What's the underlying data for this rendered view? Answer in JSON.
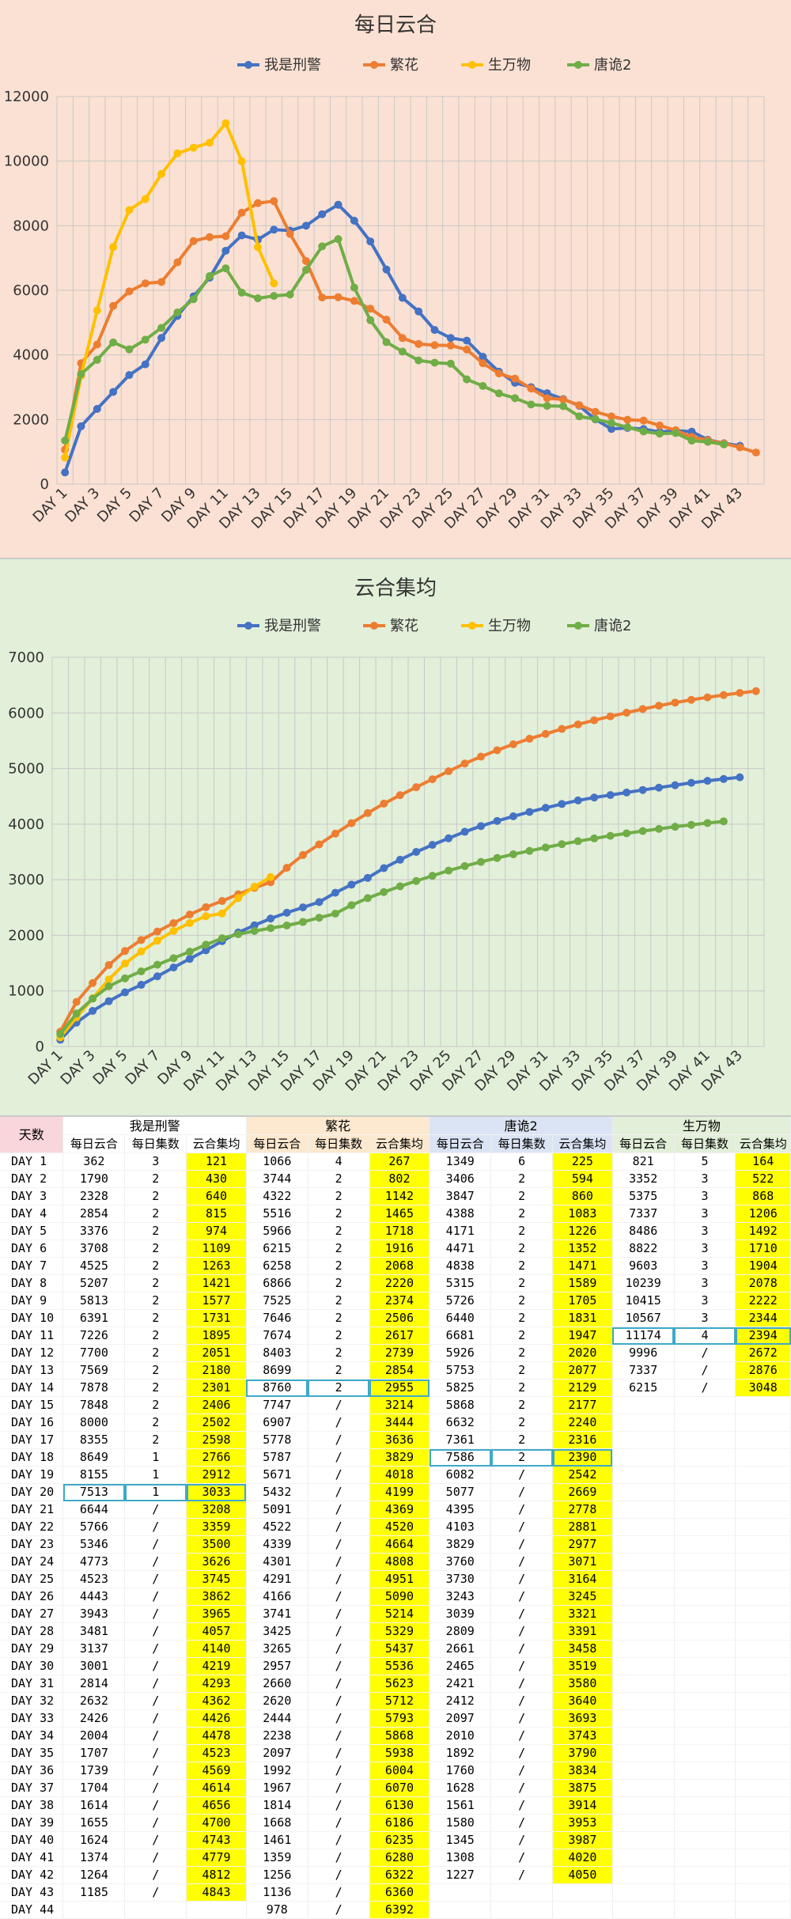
{
  "colors": {
    "series": [
      "#4472c4",
      "#ed7d31",
      "#ffc000",
      "#70ad47"
    ],
    "highlight": "#ffff00",
    "box": "#3fa9c9"
  },
  "chart_data": [
    {
      "type": "line",
      "title": "每日云合",
      "ylim": [
        0,
        12000
      ],
      "yticks": [
        0,
        2000,
        4000,
        6000,
        8000,
        10000,
        12000
      ],
      "xtick_labels": [
        "DAY 1",
        "DAY 3",
        "DAY 5",
        "DAY 7",
        "DAY 9",
        "DAY 11",
        "DAY 13",
        "DAY 15",
        "DAY 17",
        "DAY 19",
        "DAY 21",
        "DAY 23",
        "DAY 25",
        "DAY 27",
        "DAY 29",
        "DAY 31",
        "DAY 33",
        "DAY 35",
        "DAY 37",
        "DAY 39",
        "DAY 41",
        "DAY 43"
      ],
      "x_count": 44,
      "legend": "top",
      "grid": true,
      "series": [
        {
          "name": "我是刑警",
          "values": [
            362,
            1790,
            2328,
            2854,
            3376,
            3708,
            4525,
            5207,
            5813,
            6391,
            7226,
            7700,
            7569,
            7878,
            7848,
            8000,
            8355,
            8649,
            8155,
            7513,
            6644,
            5766,
            5346,
            4773,
            4523,
            4443,
            3943,
            3481,
            3137,
            3001,
            2814,
            2632,
            2426,
            2004,
            1707,
            1739,
            1704,
            1614,
            1655,
            1624,
            1374,
            1264,
            1185
          ]
        },
        {
          "name": "繁花",
          "values": [
            1066,
            3744,
            4322,
            5516,
            5966,
            6215,
            6258,
            6866,
            7525,
            7646,
            7674,
            8403,
            8699,
            8760,
            7747,
            6907,
            5778,
            5787,
            5671,
            5432,
            5091,
            4522,
            4339,
            4301,
            4291,
            4166,
            3741,
            3425,
            3265,
            2957,
            2660,
            2620,
            2444,
            2238,
            2097,
            1992,
            1967,
            1814,
            1668,
            1461,
            1359,
            1256,
            1136,
            978
          ]
        },
        {
          "name": "生万物",
          "values": [
            821,
            3352,
            5375,
            7337,
            8486,
            8822,
            9603,
            10239,
            10415,
            10567,
            11174,
            9996,
            7337,
            6215
          ]
        },
        {
          "name": "唐诡2",
          "values": [
            1349,
            3406,
            3847,
            4388,
            4171,
            4471,
            4838,
            5315,
            5726,
            6440,
            6681,
            5926,
            5753,
            5825,
            5868,
            6632,
            7361,
            7586,
            6082,
            5077,
            4395,
            4103,
            3829,
            3760,
            3730,
            3243,
            3039,
            2809,
            2661,
            2465,
            2421,
            2412,
            2097,
            2010,
            1892,
            1760,
            1628,
            1561,
            1580,
            1345,
            1308,
            1227
          ]
        }
      ]
    },
    {
      "type": "line",
      "title": "云合集均",
      "ylim": [
        0,
        7000
      ],
      "yticks": [
        0,
        1000,
        2000,
        3000,
        4000,
        5000,
        6000,
        7000
      ],
      "xtick_labels": [
        "DAY 1",
        "DAY 3",
        "DAY 5",
        "DAY 7",
        "DAY 9",
        "DAY 11",
        "DAY 13",
        "DAY 15",
        "DAY 17",
        "DAY 19",
        "DAY 21",
        "DAY 23",
        "DAY 25",
        "DAY 27",
        "DAY 29",
        "DAY 31",
        "DAY 33",
        "DAY 35",
        "DAY 37",
        "DAY 39",
        "DAY 41",
        "DAY 43"
      ],
      "x_count": 44,
      "legend": "top",
      "grid": true,
      "series": [
        {
          "name": "我是刑警",
          "values": [
            121,
            430,
            640,
            815,
            974,
            1109,
            1263,
            1421,
            1577,
            1731,
            1895,
            2051,
            2180,
            2301,
            2406,
            2502,
            2598,
            2766,
            2912,
            3033,
            3208,
            3359,
            3500,
            3626,
            3745,
            3862,
            3965,
            4057,
            4140,
            4219,
            4293,
            4362,
            4426,
            4478,
            4523,
            4569,
            4614,
            4656,
            4700,
            4743,
            4779,
            4812,
            4843
          ]
        },
        {
          "name": "繁花",
          "values": [
            267,
            802,
            1142,
            1465,
            1718,
            1916,
            2068,
            2220,
            2374,
            2506,
            2617,
            2739,
            2854,
            2955,
            3214,
            3444,
            3636,
            3829,
            4018,
            4199,
            4369,
            4520,
            4664,
            4808,
            4951,
            5090,
            5214,
            5329,
            5437,
            5536,
            5623,
            5712,
            5793,
            5868,
            5938,
            6004,
            6070,
            6130,
            6186,
            6235,
            6280,
            6322,
            6360,
            6392
          ]
        },
        {
          "name": "生万物",
          "values": [
            164,
            522,
            868,
            1206,
            1492,
            1710,
            1904,
            2078,
            2222,
            2344,
            2394,
            2672,
            2876,
            3048
          ]
        },
        {
          "name": "唐诡2",
          "values": [
            225,
            594,
            860,
            1083,
            1226,
            1352,
            1471,
            1589,
            1705,
            1831,
            1947,
            2020,
            2077,
            2129,
            2177,
            2240,
            2316,
            2390,
            2542,
            2669,
            2778,
            2881,
            2977,
            3071,
            3164,
            3245,
            3321,
            3391,
            3458,
            3519,
            3580,
            3640,
            3693,
            3743,
            3790,
            3834,
            3875,
            3914,
            3953,
            3987,
            4020,
            4050
          ]
        }
      ]
    },
    {
      "type": "table",
      "day_header": "天数",
      "groups": [
        "我是刑警",
        "繁花",
        "唐诡2",
        "生万物"
      ],
      "subheaders": [
        "每日云合",
        "每日集数",
        "云合集均"
      ],
      "rows": [
        [
          "DAY 1",
          "362",
          "3",
          "121",
          "1066",
          "4",
          "267",
          "1349",
          "6",
          "225",
          "821",
          "5",
          "164"
        ],
        [
          "DAY 2",
          "1790",
          "2",
          "430",
          "3744",
          "2",
          "802",
          "3406",
          "2",
          "594",
          "3352",
          "3",
          "522"
        ],
        [
          "DAY 3",
          "2328",
          "2",
          "640",
          "4322",
          "2",
          "1142",
          "3847",
          "2",
          "860",
          "5375",
          "3",
          "868"
        ],
        [
          "DAY 4",
          "2854",
          "2",
          "815",
          "5516",
          "2",
          "1465",
          "4388",
          "2",
          "1083",
          "7337",
          "3",
          "1206"
        ],
        [
          "DAY 5",
          "3376",
          "2",
          "974",
          "5966",
          "2",
          "1718",
          "4171",
          "2",
          "1226",
          "8486",
          "3",
          "1492"
        ],
        [
          "DAY 6",
          "3708",
          "2",
          "1109",
          "6215",
          "2",
          "1916",
          "4471",
          "2",
          "1352",
          "8822",
          "3",
          "1710"
        ],
        [
          "DAY 7",
          "4525",
          "2",
          "1263",
          "6258",
          "2",
          "2068",
          "4838",
          "2",
          "1471",
          "9603",
          "3",
          "1904"
        ],
        [
          "DAY 8",
          "5207",
          "2",
          "1421",
          "6866",
          "2",
          "2220",
          "5315",
          "2",
          "1589",
          "10239",
          "3",
          "2078"
        ],
        [
          "DAY 9",
          "5813",
          "2",
          "1577",
          "7525",
          "2",
          "2374",
          "5726",
          "2",
          "1705",
          "10415",
          "3",
          "2222"
        ],
        [
          "DAY 10",
          "6391",
          "2",
          "1731",
          "7646",
          "2",
          "2506",
          "6440",
          "2",
          "1831",
          "10567",
          "3",
          "2344"
        ],
        [
          "DAY 11",
          "7226",
          "2",
          "1895",
          "7674",
          "2",
          "2617",
          "6681",
          "2",
          "1947",
          "11174",
          "4",
          "2394"
        ],
        [
          "DAY 12",
          "7700",
          "2",
          "2051",
          "8403",
          "2",
          "2739",
          "5926",
          "2",
          "2020",
          "9996",
          "/",
          "2672"
        ],
        [
          "DAY 13",
          "7569",
          "2",
          "2180",
          "8699",
          "2",
          "2854",
          "5753",
          "2",
          "2077",
          "7337",
          "/",
          "2876"
        ],
        [
          "DAY 14",
          "7878",
          "2",
          "2301",
          "8760",
          "2",
          "2955",
          "5825",
          "2",
          "2129",
          "6215",
          "/",
          "3048"
        ],
        [
          "DAY 15",
          "7848",
          "2",
          "2406",
          "7747",
          "/",
          "3214",
          "5868",
          "2",
          "2177",
          "",
          "",
          ""
        ],
        [
          "DAY 16",
          "8000",
          "2",
          "2502",
          "6907",
          "/",
          "3444",
          "6632",
          "2",
          "2240",
          "",
          "",
          ""
        ],
        [
          "DAY 17",
          "8355",
          "2",
          "2598",
          "5778",
          "/",
          "3636",
          "7361",
          "2",
          "2316",
          "",
          "",
          ""
        ],
        [
          "DAY 18",
          "8649",
          "1",
          "2766",
          "5787",
          "/",
          "3829",
          "7586",
          "2",
          "2390",
          "",
          "",
          ""
        ],
        [
          "DAY 19",
          "8155",
          "1",
          "2912",
          "5671",
          "/",
          "4018",
          "6082",
          "/",
          "2542",
          "",
          "",
          ""
        ],
        [
          "DAY 20",
          "7513",
          "1",
          "3033",
          "5432",
          "/",
          "4199",
          "5077",
          "/",
          "2669",
          "",
          "",
          ""
        ],
        [
          "DAY 21",
          "6644",
          "/",
          "3208",
          "5091",
          "/",
          "4369",
          "4395",
          "/",
          "2778",
          "",
          "",
          ""
        ],
        [
          "DAY 22",
          "5766",
          "/",
          "3359",
          "4522",
          "/",
          "4520",
          "4103",
          "/",
          "2881",
          "",
          "",
          ""
        ],
        [
          "DAY 23",
          "5346",
          "/",
          "3500",
          "4339",
          "/",
          "4664",
          "3829",
          "/",
          "2977",
          "",
          "",
          ""
        ],
        [
          "DAY 24",
          "4773",
          "/",
          "3626",
          "4301",
          "/",
          "4808",
          "3760",
          "/",
          "3071",
          "",
          "",
          ""
        ],
        [
          "DAY 25",
          "4523",
          "/",
          "3745",
          "4291",
          "/",
          "4951",
          "3730",
          "/",
          "3164",
          "",
          "",
          ""
        ],
        [
          "DAY 26",
          "4443",
          "/",
          "3862",
          "4166",
          "/",
          "5090",
          "3243",
          "/",
          "3245",
          "",
          "",
          ""
        ],
        [
          "DAY 27",
          "3943",
          "/",
          "3965",
          "3741",
          "/",
          "5214",
          "3039",
          "/",
          "3321",
          "",
          "",
          ""
        ],
        [
          "DAY 28",
          "3481",
          "/",
          "4057",
          "3425",
          "/",
          "5329",
          "2809",
          "/",
          "3391",
          "",
          "",
          ""
        ],
        [
          "DAY 29",
          "3137",
          "/",
          "4140",
          "3265",
          "/",
          "5437",
          "2661",
          "/",
          "3458",
          "",
          "",
          ""
        ],
        [
          "DAY 30",
          "3001",
          "/",
          "4219",
          "2957",
          "/",
          "5536",
          "2465",
          "/",
          "3519",
          "",
          "",
          ""
        ],
        [
          "DAY 31",
          "2814",
          "/",
          "4293",
          "2660",
          "/",
          "5623",
          "2421",
          "/",
          "3580",
          "",
          "",
          ""
        ],
        [
          "DAY 32",
          "2632",
          "/",
          "4362",
          "2620",
          "/",
          "5712",
          "2412",
          "/",
          "3640",
          "",
          "",
          ""
        ],
        [
          "DAY 33",
          "2426",
          "/",
          "4426",
          "2444",
          "/",
          "5793",
          "2097",
          "/",
          "3693",
          "",
          "",
          ""
        ],
        [
          "DAY 34",
          "2004",
          "/",
          "4478",
          "2238",
          "/",
          "5868",
          "2010",
          "/",
          "3743",
          "",
          "",
          ""
        ],
        [
          "DAY 35",
          "1707",
          "/",
          "4523",
          "2097",
          "/",
          "5938",
          "1892",
          "/",
          "3790",
          "",
          "",
          ""
        ],
        [
          "DAY 36",
          "1739",
          "/",
          "4569",
          "1992",
          "/",
          "6004",
          "1760",
          "/",
          "3834",
          "",
          "",
          ""
        ],
        [
          "DAY 37",
          "1704",
          "/",
          "4614",
          "1967",
          "/",
          "6070",
          "1628",
          "/",
          "3875",
          "",
          "",
          ""
        ],
        [
          "DAY 38",
          "1614",
          "/",
          "4656",
          "1814",
          "/",
          "6130",
          "1561",
          "/",
          "3914",
          "",
          "",
          ""
        ],
        [
          "DAY 39",
          "1655",
          "/",
          "4700",
          "1668",
          "/",
          "6186",
          "1580",
          "/",
          "3953",
          "",
          "",
          ""
        ],
        [
          "DAY 40",
          "1624",
          "/",
          "4743",
          "1461",
          "/",
          "6235",
          "1345",
          "/",
          "3987",
          "",
          "",
          ""
        ],
        [
          "DAY 41",
          "1374",
          "/",
          "4779",
          "1359",
          "/",
          "6280",
          "1308",
          "/",
          "4020",
          "",
          "",
          ""
        ],
        [
          "DAY 42",
          "1264",
          "/",
          "4812",
          "1256",
          "/",
          "6322",
          "1227",
          "/",
          "4050",
          "",
          "",
          ""
        ],
        [
          "DAY 43",
          "1185",
          "/",
          "4843",
          "1136",
          "/",
          "6360",
          "",
          "",
          "",
          "",
          "",
          ""
        ],
        [
          "DAY 44",
          "",
          "",
          "",
          "978",
          "/",
          "6392",
          "",
          "",
          "",
          "",
          "",
          ""
        ]
      ],
      "boxed": [
        [
          19,
          0
        ],
        [
          13,
          1
        ],
        [
          17,
          2
        ],
        [
          10,
          3
        ]
      ]
    }
  ]
}
